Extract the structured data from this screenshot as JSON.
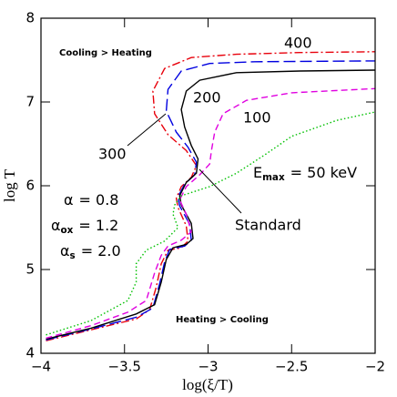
{
  "chart_data": {
    "type": "line",
    "xlabel": "log(ξ/T)",
    "ylabel": "log T",
    "xlim": [
      -4,
      -2
    ],
    "ylim": [
      4,
      8
    ],
    "xticks": [
      {
        "value": -4,
        "label": "−4"
      },
      {
        "value": -3.5,
        "label": "−3.5"
      },
      {
        "value": -3,
        "label": "−3"
      },
      {
        "value": -2.5,
        "label": "−2.5"
      },
      {
        "value": -2,
        "label": "−2"
      }
    ],
    "yticks": [
      4,
      5,
      6,
      7,
      8
    ],
    "series": [
      {
        "color": "#e8000b",
        "line_style": "dash-dot",
        "x": [
          -3.97,
          -3.7,
          -3.43,
          -3.35,
          -3.31,
          -3.28,
          -3.24,
          -3.16,
          -3.12,
          -3.13,
          -3.18,
          -3.19,
          -3.16,
          -3.1,
          -3.07,
          -3.13,
          -3.24,
          -3.32,
          -3.33,
          -3.26,
          -3.1,
          -2.83,
          -2.45,
          -2.0
        ],
        "values": [
          4.15,
          4.28,
          4.41,
          4.52,
          4.79,
          5.07,
          5.23,
          5.26,
          5.34,
          5.52,
          5.74,
          5.85,
          5.99,
          6.1,
          6.24,
          6.42,
          6.61,
          6.86,
          7.13,
          7.4,
          7.53,
          7.57,
          7.59,
          7.6
        ]
      },
      {
        "color": "#0000e0",
        "line_style": "long-dashed",
        "x": [
          -3.97,
          -3.7,
          -3.43,
          -3.33,
          -3.29,
          -3.26,
          -3.23,
          -3.14,
          -3.1,
          -3.11,
          -3.17,
          -3.18,
          -3.14,
          -3.08,
          -3.07,
          -3.12,
          -3.19,
          -3.25,
          -3.24,
          -3.16,
          -2.99,
          -2.72,
          -2.0
        ],
        "values": [
          4.16,
          4.29,
          4.43,
          4.54,
          4.83,
          5.09,
          5.24,
          5.28,
          5.35,
          5.54,
          5.76,
          5.87,
          6.02,
          6.13,
          6.28,
          6.46,
          6.64,
          6.89,
          7.15,
          7.37,
          7.46,
          7.48,
          7.49
        ]
      },
      {
        "color": "#000000",
        "line_style": "solid",
        "x": [
          -3.97,
          -3.7,
          -3.43,
          -3.32,
          -3.28,
          -3.25,
          -3.21,
          -3.13,
          -3.09,
          -3.1,
          -3.16,
          -3.17,
          -3.13,
          -3.07,
          -3.06,
          -3.1,
          -3.14,
          -3.16,
          -3.13,
          -3.05,
          -2.83,
          -2.45,
          -2.0
        ],
        "values": [
          4.17,
          4.3,
          4.47,
          4.58,
          4.85,
          5.12,
          5.26,
          5.3,
          5.37,
          5.55,
          5.77,
          5.88,
          6.04,
          6.15,
          6.32,
          6.48,
          6.7,
          6.91,
          7.13,
          7.26,
          7.35,
          7.37,
          7.38
        ]
      },
      {
        "color": "#e000e0",
        "line_style": "dashed",
        "x": [
          -3.97,
          -3.7,
          -3.48,
          -3.37,
          -3.32,
          -3.28,
          -3.24,
          -3.16,
          -3.1,
          -3.13,
          -3.17,
          -3.13,
          -3.05,
          -2.99,
          -2.98,
          -2.96,
          -2.91,
          -2.77,
          -2.5,
          -2.0
        ],
        "values": [
          4.18,
          4.33,
          4.49,
          4.63,
          4.96,
          5.17,
          5.28,
          5.35,
          5.45,
          5.66,
          5.83,
          5.99,
          6.13,
          6.26,
          6.42,
          6.64,
          6.86,
          7.02,
          7.11,
          7.16
        ]
      },
      {
        "color": "#00c000",
        "line_style": "dotted",
        "x": [
          -3.97,
          -3.7,
          -3.48,
          -3.43,
          -3.43,
          -3.37,
          -3.26,
          -3.18,
          -3.21,
          -3.2,
          -3.16,
          -2.99,
          -2.83,
          -2.66,
          -2.5,
          -2.23,
          -2.0
        ],
        "values": [
          4.22,
          4.39,
          4.63,
          4.85,
          5.07,
          5.23,
          5.34,
          5.5,
          5.66,
          5.77,
          5.88,
          5.99,
          6.15,
          6.37,
          6.59,
          6.78,
          6.88
        ]
      }
    ],
    "region_labels": [
      "Cooling > Heating",
      "Heating > Cooling"
    ],
    "curve_labels": [
      "400",
      "200",
      "100",
      "300",
      "Standard",
      {
        "symbol": "E",
        "subscript": "max",
        "text": "= 50 keV"
      }
    ],
    "parameters": [
      {
        "symbol": "α",
        "text": "= 0.8"
      },
      {
        "symbol": "α",
        "subscript": "ox",
        "text": "= 1.2"
      },
      {
        "symbol": "α",
        "subscript": "s",
        "text": "= 2.0"
      }
    ]
  }
}
